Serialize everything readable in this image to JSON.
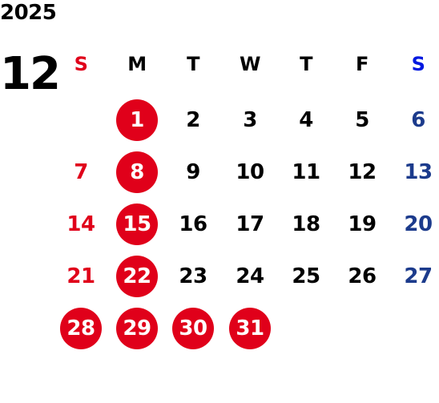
{
  "year": "2025",
  "month": "12",
  "colors": {
    "text": "#000000",
    "sunday": "#e0001a",
    "saturday_header": "#0018e0",
    "saturday": "#1c3b8c",
    "holiday_circle": "#e0001a",
    "holiday_text": "#ffffff"
  },
  "weekdays": [
    "S",
    "M",
    "T",
    "W",
    "T",
    "F",
    "S"
  ],
  "weeks": [
    [
      null,
      1,
      2,
      3,
      4,
      5,
      6
    ],
    [
      7,
      8,
      9,
      10,
      11,
      12,
      13
    ],
    [
      14,
      15,
      16,
      17,
      18,
      19,
      20
    ],
    [
      21,
      22,
      23,
      24,
      25,
      26,
      27
    ],
    [
      28,
      29,
      30,
      31,
      null,
      null,
      null
    ]
  ],
  "highlighted_days": [
    1,
    8,
    15,
    22,
    28,
    29,
    30,
    31
  ]
}
